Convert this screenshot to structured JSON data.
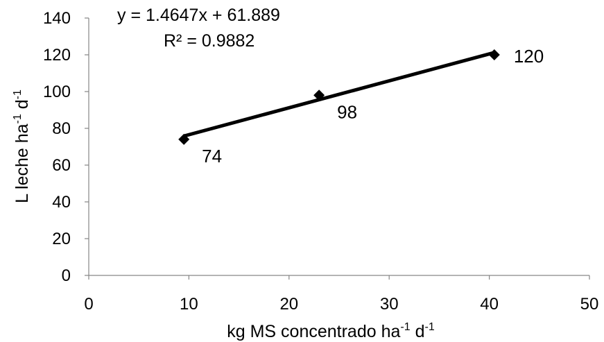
{
  "chart_data": {
    "type": "scatter",
    "x": [
      9.5,
      23,
      40.5
    ],
    "series": [
      {
        "values": [
          74,
          98,
          120
        ],
        "data_labels": [
          "74",
          "98",
          "120"
        ]
      }
    ],
    "trendline": {
      "type": "linear",
      "slope": 1.4647,
      "intercept": 61.889,
      "equation_text": "y = 1.4647x + 61.889",
      "r2_text": "R² = 0.9882"
    },
    "xlabel": {
      "text": "kg MS concentrado ha",
      "sup1": "-1",
      "mid": " d",
      "sup2": "-1"
    },
    "ylabel": {
      "text": "L leche ha",
      "sup1": "-1",
      "mid": " d",
      "sup2": "-1"
    },
    "xlim": [
      0,
      50
    ],
    "ylim": [
      0,
      140
    ],
    "xticks": [
      0,
      10,
      20,
      30,
      40,
      50
    ],
    "yticks": [
      0,
      20,
      40,
      60,
      80,
      100,
      120,
      140
    ],
    "grid": false,
    "legend": "none",
    "colors": {
      "line": "#000000",
      "marker": "#000000",
      "axis": "#868686"
    },
    "marker_shape": "diamond"
  }
}
